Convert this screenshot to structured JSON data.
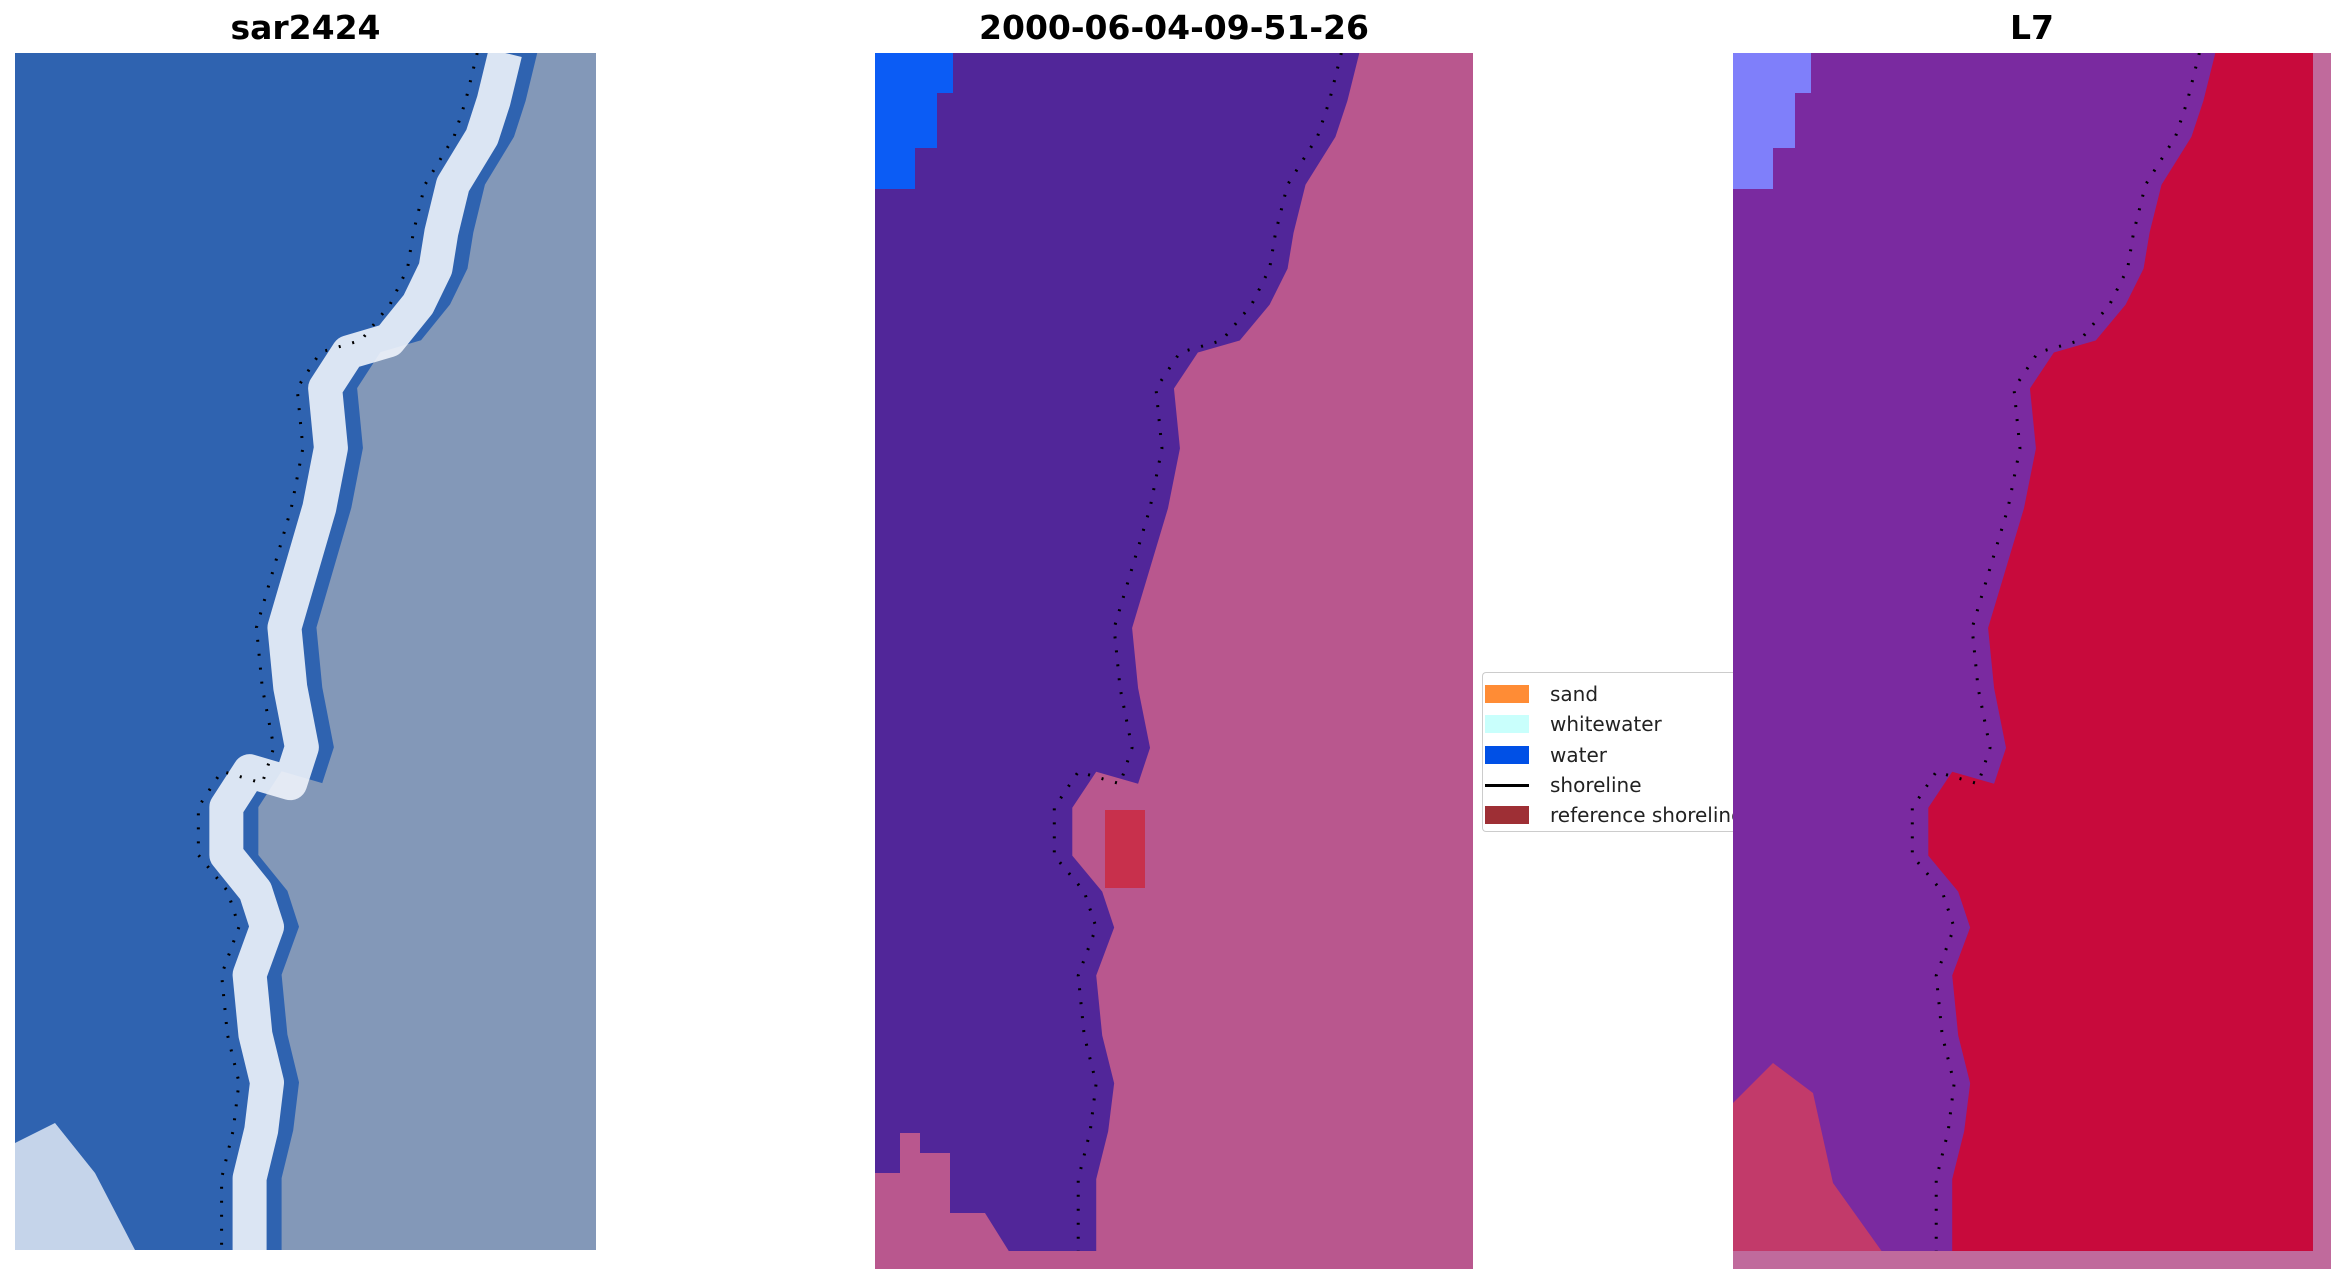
{
  "panels": {
    "rgb": {
      "title": "sar2424"
    },
    "classified": {
      "title": "2000-06-04-09-51-26"
    },
    "index": {
      "title": "L7"
    }
  },
  "legend": {
    "items": [
      {
        "label": "sand",
        "color": "#ff8c35",
        "kind": "patch"
      },
      {
        "label": "whitewater",
        "color": "#c9fffc",
        "kind": "patch"
      },
      {
        "label": "water",
        "color": "#0050e6",
        "kind": "patch"
      },
      {
        "label": "shoreline",
        "color": "#000000",
        "kind": "line"
      },
      {
        "label": "reference shoreline",
        "color": "#9e2f35",
        "kind": "patch"
      }
    ]
  },
  "colors": {
    "deep_water": "#2f63b0",
    "surf": "#eef3fb",
    "land_rgb": "#8398b8",
    "classified_water": "#512699",
    "classified_land": "#b9578e",
    "water_blue": "#0b5cf5",
    "reference_red": "#c8304c",
    "index_water": "#7a2aa0",
    "index_land": "#c80a3c",
    "index_blue": "#7f7ffa"
  }
}
